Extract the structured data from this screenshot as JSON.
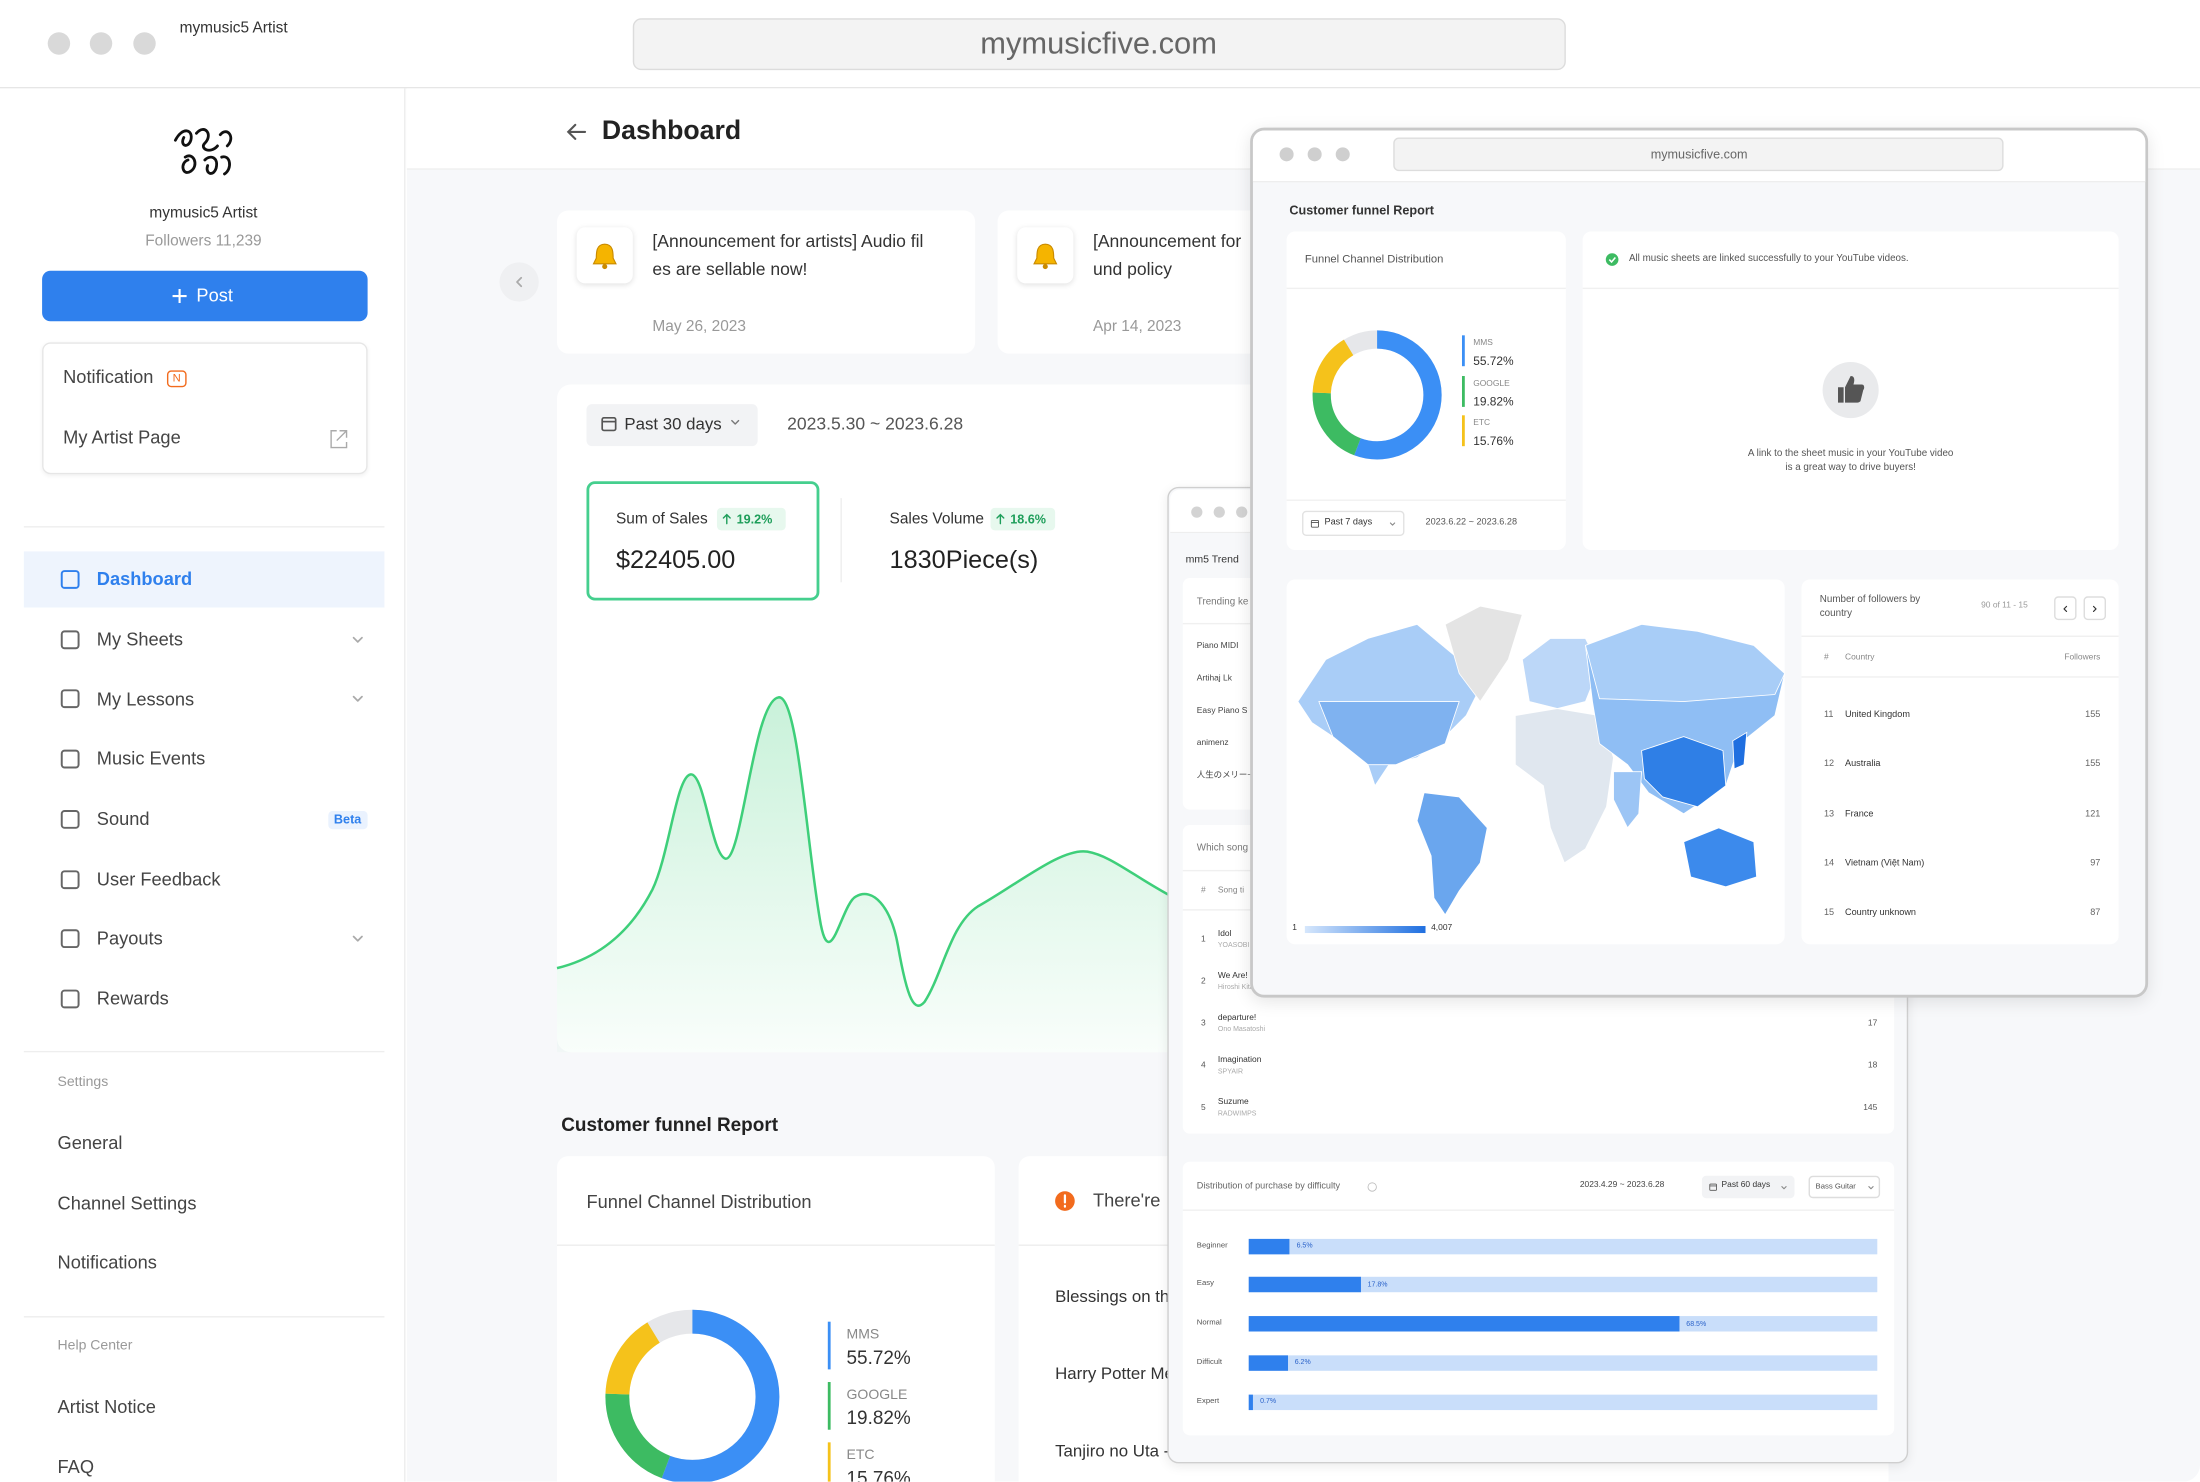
{
  "browser": {
    "app_name": "mymusic5 Artist",
    "url": "mymusicfive.com"
  },
  "sidebar": {
    "artist_name": "mymusic5 Artist",
    "followers": "Followers 11,239",
    "post_button": "Post",
    "notification": "Notification",
    "notification_badge": "N",
    "artist_page": "My Artist Page",
    "menu": [
      {
        "label": "Dashboard",
        "active": true
      },
      {
        "label": "My Sheets",
        "submenu": true
      },
      {
        "label": "My Lessons",
        "submenu": true
      },
      {
        "label": "Music Events"
      },
      {
        "label": "Sound",
        "badge": "Beta"
      },
      {
        "label": "User Feedback"
      },
      {
        "label": "Payouts",
        "submenu": true
      },
      {
        "label": "Rewards"
      }
    ],
    "settings_heading": "Settings",
    "settings": [
      "General",
      "Channel Settings",
      "Notifications"
    ],
    "help_heading": "Help Center",
    "help": [
      "Artist Notice",
      "FAQ"
    ]
  },
  "dashboard": {
    "title": "Dashboard",
    "announcements": [
      {
        "lines": [
          "[Announcement for artists] Audio fil",
          "es are sellable now!"
        ],
        "date": "May 26, 2023"
      },
      {
        "lines": [
          "[Announcement for",
          "und policy"
        ],
        "date": "Apr 14, 2023"
      }
    ],
    "period": "Past 30 days",
    "range": "2023.5.30 ~ 2023.6.28",
    "kpis": [
      {
        "label": "Sum of Sales",
        "change": "19.2%",
        "value": "$22405.00"
      },
      {
        "label": "Sales Volume",
        "change": "18.6%",
        "value": "1830Piece(s)"
      }
    ],
    "funnel_heading": "Customer funnel Report",
    "funnel_title": "Funnel Channel Distribution",
    "funnel_chart": {
      "type": "donut",
      "categories": [
        "MMS",
        "GOOGLE",
        "ETC"
      ],
      "values": [
        55.72,
        19.82,
        15.76
      ],
      "value_labels": [
        "55.72%",
        "19.82%",
        "15.76%"
      ],
      "colors": [
        "#3b8ff5",
        "#3dbb62",
        "#f5c21b"
      ]
    },
    "notice": "There're",
    "songs": [
      "Blessings on th",
      "Harry Potter Me",
      "Tanjiro no Uta -"
    ]
  },
  "trend_window": {
    "title": "mm5 Trend",
    "keywords_title": "Trending ke",
    "keywords": [
      "Piano MIDI",
      "Artihaj Lk",
      "Easy Piano S",
      "animenz",
      "人生のメリー~"
    ],
    "songs_title": "Which song",
    "songs_columns": [
      "#",
      "Song ti"
    ],
    "songs": [
      {
        "rank": 1,
        "title": "Idol",
        "artist": "YOASOBI"
      },
      {
        "rank": 2,
        "title": "We Are!",
        "artist": "Hiroshi Kitadani"
      },
      {
        "rank": 3,
        "title": "departure!",
        "artist": "Ono Masatoshi",
        "count": 17
      },
      {
        "rank": 4,
        "title": "Imagination",
        "artist": "SPYAIR",
        "count": 18
      },
      {
        "rank": 5,
        "title": "Suzume",
        "artist": "RADWIMPS",
        "count": 145
      }
    ],
    "difficulty_title": "Distribution of purchase by difficulty",
    "difficulty_range": "2023.4.29 ~ 2023.6.28",
    "difficulty_period": "Past 60 days",
    "difficulty_instrument": "Bass Guitar",
    "difficulty_chart": {
      "type": "bar",
      "categories": [
        "Beginner",
        "Easy",
        "Normal",
        "Difficult",
        "Expert"
      ],
      "values": [
        6.5,
        17.8,
        68.5,
        6.2,
        0.7
      ],
      "value_labels": [
        "6.5%",
        "17.8%",
        "68.5%",
        "6.2%",
        "0.7%"
      ],
      "xlim": [
        0,
        100
      ],
      "color": "#2f80ed",
      "track_color": "#c9defa"
    }
  },
  "funnel_window": {
    "url": "mymusicfive.com",
    "heading": "Customer funnel Report",
    "funnel_title": "Funnel Channel Distribution",
    "funnel_chart": {
      "type": "donut",
      "categories": [
        "MMS",
        "GOOGLE",
        "ETC"
      ],
      "values": [
        55.72,
        19.82,
        15.76
      ],
      "value_labels": [
        "55.72%",
        "19.82%",
        "15.76%"
      ],
      "colors": [
        "#3b8ff5",
        "#3dbb62",
        "#f5c21b"
      ]
    },
    "period": "Past 7 days",
    "range": "2023.6.22 ~ 2023.6.28",
    "youtube_status": "All music sheets are linked successfully to your YouTube videos.",
    "youtube_hint": [
      "A link to the sheet music in your YouTube video",
      "is a great way to drive buyers!"
    ],
    "map_legend": [
      1,
      {
        "value": 4007,
        "label": "4,007"
      }
    ],
    "followers_title": [
      "Number of followers by",
      "country"
    ],
    "pagination": "90 of 11 - 15",
    "columns": [
      "#",
      "Country",
      "Followers"
    ],
    "rows": [
      {
        "rank": 11,
        "country": "United Kingdom",
        "followers": 155
      },
      {
        "rank": 12,
        "country": "Australia",
        "followers": 155
      },
      {
        "rank": 13,
        "country": "France",
        "followers": 121
      },
      {
        "rank": 14,
        "country": "Vietnam (Việt Nam)",
        "followers": 97
      },
      {
        "rank": 15,
        "country": "Country unknown",
        "followers": 87
      }
    ]
  }
}
